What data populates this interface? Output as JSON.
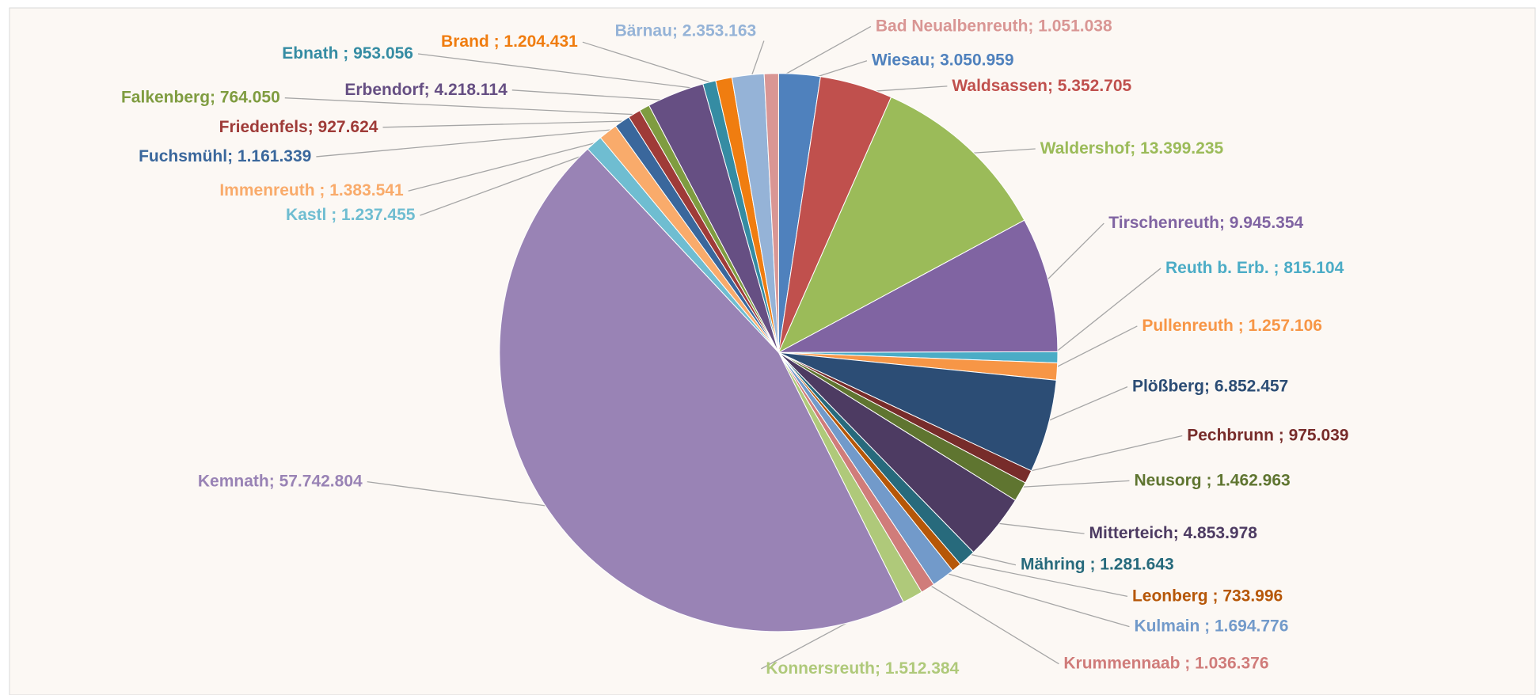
{
  "chart_data": {
    "type": "pie",
    "separator": "; ",
    "categories": [
      "Wiesau",
      "Waldsassen",
      "Waldershof",
      "Tirschenreuth",
      "Reuth b. Erb. ",
      "Pullenreuth ",
      "Plößberg",
      "Pechbrunn ",
      "Neusorg ",
      "Mitterteich",
      "Mähring ",
      "Leonberg ",
      "Kulmain ",
      "Krummennaab ",
      "Konnersreuth",
      "Kemnath",
      "Kastl ",
      "Immenreuth ",
      "Fuchsmühl",
      "Friedenfels",
      "Falkenberg",
      "Erbendorf",
      "Ebnath ",
      "Brand ",
      "Bärnau",
      "Bad Neualbenreuth"
    ],
    "values": [
      3050959,
      5352705,
      13399235,
      9945354,
      815104,
      1257106,
      6852457,
      975039,
      1462963,
      4853978,
      1281643,
      733996,
      1694776,
      1036376,
      1512384,
      57742804,
      1237455,
      1383541,
      1161339,
      927624,
      764050,
      4218114,
      953056,
      1204431,
      2353163,
      1051038
    ],
    "value_labels": [
      "3.050.959",
      "5.352.705",
      "13.399.235",
      "9.945.354",
      "815.104",
      "1.257.106",
      "6.852.457",
      "975.039",
      "1.462.963",
      "4.853.978",
      "1.281.643",
      "733.996",
      "1.694.776",
      "1.036.376",
      "1.512.384",
      "57.742.804",
      "1.237.455",
      "1.383.541",
      "1.161.339",
      "927.624",
      "764.050",
      "4.218.114",
      "953.056",
      "1.204.431",
      "2.353.163",
      "1.051.038"
    ],
    "colors": [
      "#4f81bd",
      "#c0504d",
      "#9bbb59",
      "#8064a2",
      "#4bacc6",
      "#f79646",
      "#2c4d75",
      "#772c2a",
      "#5f7530",
      "#4d3b62",
      "#276a7c",
      "#b65708",
      "#729aca",
      "#d07c7a",
      "#afc97a",
      "#9983b5",
      "#6fbdd1",
      "#f9ab6b",
      "#3a679c",
      "#9f3b38",
      "#7f9c40",
      "#664f83",
      "#358ca3",
      "#f07d10",
      "#95b3d7",
      "#d99694"
    ]
  }
}
